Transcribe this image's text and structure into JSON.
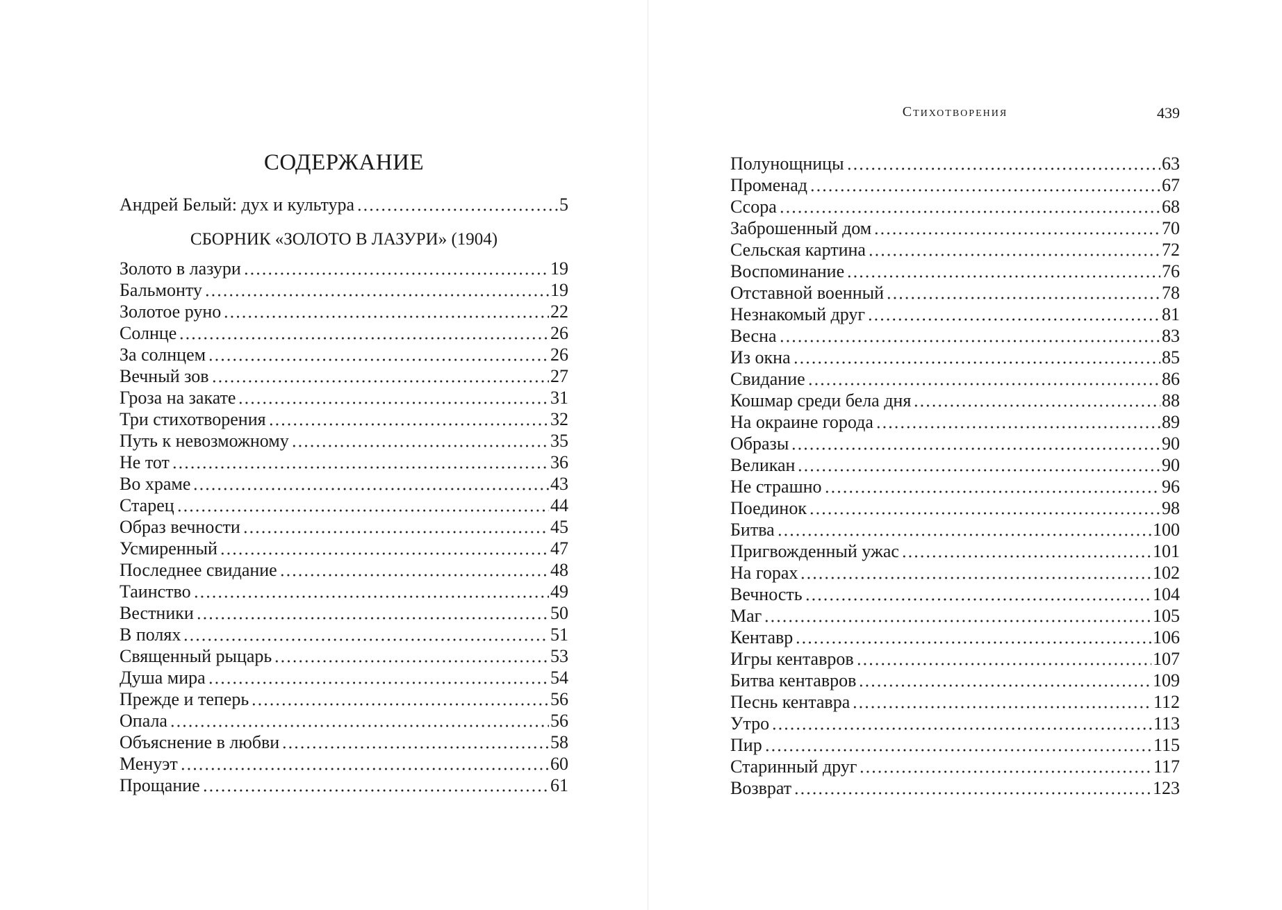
{
  "left_page": {
    "title": "СОДЕРЖАНИЕ",
    "intro": {
      "title": "Андрей Белый: дух и культура",
      "page": "5"
    },
    "section_heading": "СБОРНИК «ЗОЛОТО В ЛАЗУРИ» (1904)",
    "entries": [
      {
        "title": "Золото в лазури",
        "page": "19"
      },
      {
        "title": "Бальмонту",
        "page": "19"
      },
      {
        "title": "Золотое руно",
        "page": "22"
      },
      {
        "title": "Солнце",
        "page": "26"
      },
      {
        "title": "За солнцем",
        "page": "26"
      },
      {
        "title": "Вечный зов",
        "page": "27"
      },
      {
        "title": "Гроза на закате",
        "page": "31"
      },
      {
        "title": "Три стихотворения",
        "page": "32"
      },
      {
        "title": "Путь к невозможному",
        "page": "35"
      },
      {
        "title": "Не тот",
        "page": "36"
      },
      {
        "title": "Во храме",
        "page": "43"
      },
      {
        "title": "Старец",
        "page": "44"
      },
      {
        "title": "Образ вечности",
        "page": "45"
      },
      {
        "title": "Усмиренный",
        "page": "47"
      },
      {
        "title": "Последнее свидание",
        "page": "48"
      },
      {
        "title": "Таинство",
        "page": "49"
      },
      {
        "title": "Вестники",
        "page": "50"
      },
      {
        "title": "В полях",
        "page": "51"
      },
      {
        "title": "Священный рыцарь",
        "page": "53"
      },
      {
        "title": "Душа мира",
        "page": "54"
      },
      {
        "title": "Прежде и теперь",
        "page": "56"
      },
      {
        "title": "Опала",
        "page": "56"
      },
      {
        "title": "Объяснение в любви",
        "page": "58"
      },
      {
        "title": "Менуэт",
        "page": "60"
      },
      {
        "title": "Прощание",
        "page": "61"
      }
    ]
  },
  "right_page": {
    "running_head": "Стихотворения",
    "page_number": "439",
    "entries": [
      {
        "title": "Полунощницы",
        "page": "63"
      },
      {
        "title": "Променад",
        "page": "67"
      },
      {
        "title": "Ссора",
        "page": "68"
      },
      {
        "title": "Заброшенный дом",
        "page": "70"
      },
      {
        "title": "Сельская картина",
        "page": "72"
      },
      {
        "title": "Воспоминание",
        "page": "76"
      },
      {
        "title": "Отставной военный",
        "page": "78"
      },
      {
        "title": "Незнакомый друг",
        "page": "81"
      },
      {
        "title": "Весна",
        "page": "83"
      },
      {
        "title": "Из окна",
        "page": "85"
      },
      {
        "title": "Свидание",
        "page": "86"
      },
      {
        "title": "Кошмар среди бела дня",
        "page": "88"
      },
      {
        "title": "На окраине города",
        "page": "89"
      },
      {
        "title": "Образы",
        "page": "90"
      },
      {
        "title": "Великан",
        "page": "90"
      },
      {
        "title": "Не страшно",
        "page": "96"
      },
      {
        "title": "Поединок",
        "page": "98"
      },
      {
        "title": "Битва",
        "page": "100"
      },
      {
        "title": "Пригвожденный ужас",
        "page": "101"
      },
      {
        "title": "На горах",
        "page": "102"
      },
      {
        "title": "Вечность",
        "page": "104"
      },
      {
        "title": "Маг",
        "page": "105"
      },
      {
        "title": "Кентавр",
        "page": "106"
      },
      {
        "title": "Игры кентавров",
        "page": "107"
      },
      {
        "title": "Битва кентавров",
        "page": "109"
      },
      {
        "title": "Песнь кентавра",
        "page": "112"
      },
      {
        "title": "Утро",
        "page": "113"
      },
      {
        "title": "Пир",
        "page": "115"
      },
      {
        "title": "Старинный друг",
        "page": "117"
      },
      {
        "title": "Возврат",
        "page": "123"
      }
    ]
  }
}
